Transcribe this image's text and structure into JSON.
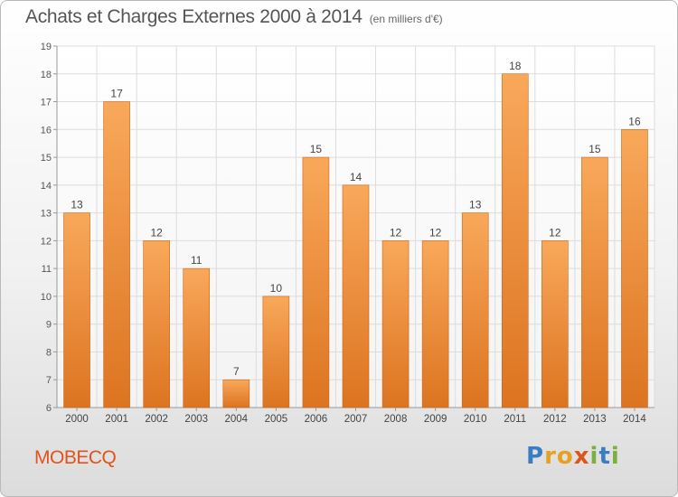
{
  "header": {
    "title": "Achats et Charges Externes 2000 à 2014",
    "subtitle": "(en milliers d'€)"
  },
  "footer": {
    "place_name": "MOBECQ",
    "logo_text": "Proxiti",
    "logo_colors": [
      "#3b7dc4",
      "#e8a021",
      "#e8a021",
      "#e0531b",
      "#79b040",
      "#3b7dc4",
      "#79b040"
    ]
  },
  "chart_data": {
    "type": "bar",
    "categories": [
      "2000",
      "2001",
      "2002",
      "2003",
      "2004",
      "2005",
      "2006",
      "2007",
      "2008",
      "2009",
      "2010",
      "2011",
      "2012",
      "2013",
      "2014"
    ],
    "values": [
      13,
      17,
      12,
      11,
      7,
      10,
      15,
      14,
      12,
      12,
      13,
      18,
      12,
      15,
      16
    ],
    "ylim": [
      6,
      19
    ],
    "yticks": [
      6,
      7,
      8,
      9,
      10,
      11,
      12,
      13,
      14,
      15,
      16,
      17,
      18,
      19
    ],
    "grid": true,
    "show_data_labels": true,
    "bar_color_top": "#f9a85a",
    "bar_color_bottom": "#dc7421",
    "grid_color": "#dcdcdc"
  }
}
